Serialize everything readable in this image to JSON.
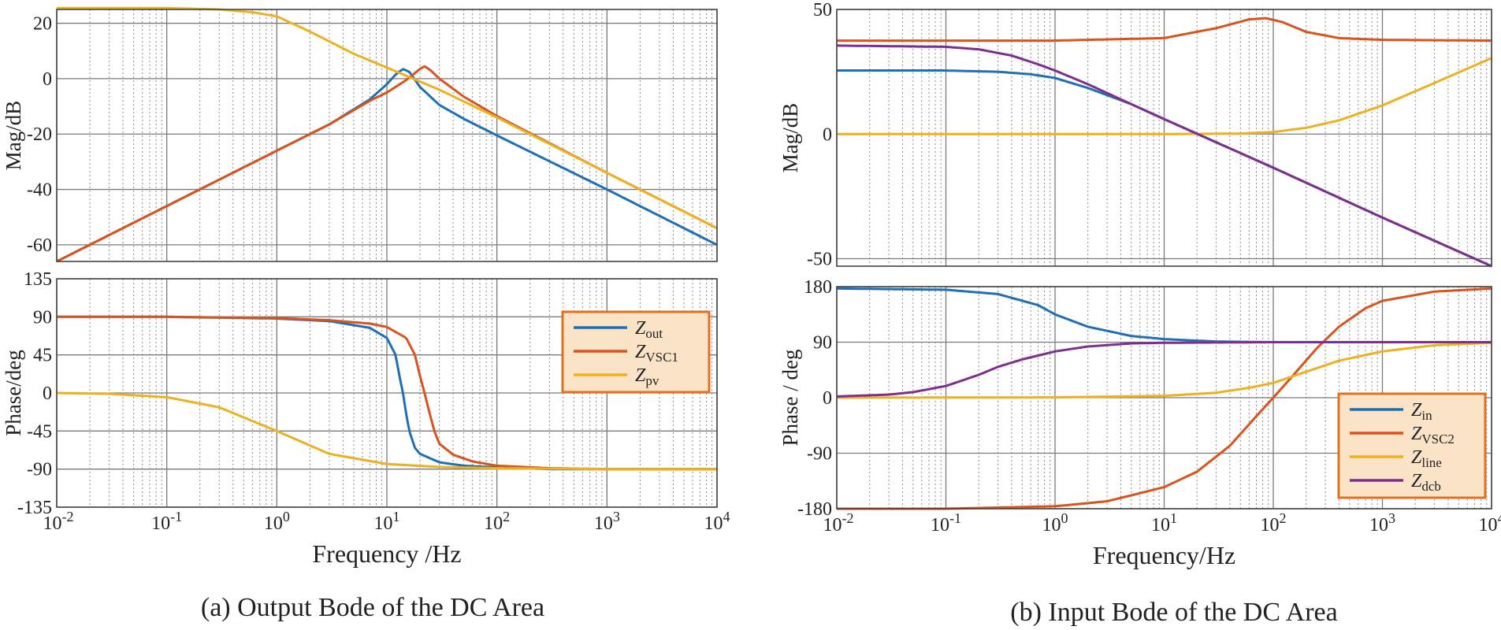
{
  "chart_data": [
    {
      "id": "a",
      "type": "line",
      "caption": "(a) Output Bode of the DC Area",
      "xlabel": "Frequency /Hz",
      "xscale": "log",
      "xlim": [
        0.01,
        10000
      ],
      "xticks": [
        {
          "mant": "10",
          "exp": "-2"
        },
        {
          "mant": "10",
          "exp": "-1"
        },
        {
          "mant": "10",
          "exp": "0"
        },
        {
          "mant": "10",
          "exp": "1"
        },
        {
          "mant": "10",
          "exp": "2"
        },
        {
          "mant": "10",
          "exp": "3"
        },
        {
          "mant": "10",
          "exp": "4"
        }
      ],
      "magnitude": {
        "ylabel": "Mag/dB",
        "ylim": [
          -66,
          25
        ],
        "yticks": [
          "20",
          "0",
          "-20",
          "-40",
          "-60"
        ],
        "yvalues": [
          20,
          0,
          -20,
          -40,
          -60
        ],
        "series": [
          {
            "key": "out",
            "name": "Z",
            "sub": "out",
            "color": "#1f6fb4",
            "x": [
              0.01,
              0.1,
              1,
              3,
              7,
              10,
              12,
              14,
              16,
              20,
              30,
              50,
              100,
              1000,
              10000
            ],
            "y": [
              -66,
              -46,
              -26,
              -16.5,
              -7.5,
              -2,
              1.5,
              3.5,
              2.5,
              -3,
              -9.5,
              -14.5,
              -20.5,
              -40,
              -60
            ]
          },
          {
            "key": "vsc1",
            "name": "Z",
            "sub": "VSC1",
            "color": "#d9531e",
            "x": [
              0.01,
              0.1,
              1,
              3,
              7,
              10,
              15,
              20,
              22,
              25,
              30,
              50,
              100,
              1000,
              10000
            ],
            "y": [
              -66,
              -46,
              -26,
              -16.5,
              -8,
              -5,
              -0.5,
              3.5,
              4.5,
              3,
              0,
              -6.5,
              -13.5,
              -34,
              -54
            ]
          },
          {
            "key": "pv",
            "name": "Z",
            "sub": "pv",
            "color": "#edb120",
            "x": [
              0.01,
              0.1,
              0.3,
              0.6,
              1,
              2,
              5,
              10,
              30,
              100,
              1000,
              10000
            ],
            "y": [
              25.5,
              25.5,
              25,
              24,
              22.5,
              17,
              9,
              4,
              -4,
              -14,
              -34,
              -54
            ]
          }
        ]
      },
      "phase": {
        "ylabel": "Phase/deg",
        "ylim": [
          -135,
          135
        ],
        "yticks": [
          "135",
          "90",
          "45",
          "0",
          "-45",
          "-90",
          "-135"
        ],
        "yvalues": [
          135,
          90,
          45,
          0,
          -45,
          -90,
          -135
        ],
        "series": [
          {
            "key": "out",
            "color": "#1f6fb4",
            "x": [
              0.01,
              0.1,
              1,
              3,
              7,
              10,
              12,
              13,
              14,
              15,
              16,
              18,
              20,
              30,
              50,
              100,
              300,
              1000,
              10000
            ],
            "y": [
              90,
              90,
              88,
              85,
              77,
              65,
              45,
              20,
              0,
              -25,
              -45,
              -65,
              -72,
              -82,
              -86,
              -88,
              -90,
              -90,
              -90
            ]
          },
          {
            "key": "vsc1",
            "color": "#d9531e",
            "x": [
              0.01,
              0.1,
              1,
              3,
              7,
              10,
              15,
              18,
              20,
              22,
              24,
              27,
              30,
              40,
              60,
              100,
              300,
              1000,
              10000
            ],
            "y": [
              90,
              90,
              88.5,
              86,
              82,
              78,
              65,
              45,
              20,
              0,
              -20,
              -45,
              -60,
              -73,
              -81,
              -86,
              -89,
              -90,
              -90
            ]
          },
          {
            "key": "pv",
            "color": "#edb120",
            "x": [
              0.01,
              0.03,
              0.1,
              0.3,
              1,
              3,
              10,
              30,
              100,
              1000,
              10000
            ],
            "y": [
              0,
              -1,
              -5,
              -17,
              -45,
              -72,
              -84,
              -87.5,
              -89,
              -90,
              -90
            ]
          }
        ],
        "legend": "upper-right"
      }
    },
    {
      "id": "b",
      "type": "line",
      "caption": "(b) Input Bode of the DC Area",
      "xlabel": "Frequency/Hz",
      "xscale": "log",
      "xlim": [
        0.01,
        10000
      ],
      "xticks": [
        {
          "mant": "10",
          "exp": "-2"
        },
        {
          "mant": "10",
          "exp": "-1"
        },
        {
          "mant": "10",
          "exp": "0"
        },
        {
          "mant": "10",
          "exp": "1"
        },
        {
          "mant": "10",
          "exp": "2"
        },
        {
          "mant": "10",
          "exp": "3"
        },
        {
          "mant": "10",
          "exp": "4"
        }
      ],
      "magnitude": {
        "ylabel": "Mag/dB",
        "ylim": [
          -53,
          50
        ],
        "yticks": [
          "50",
          "0",
          "-50"
        ],
        "yvalues": [
          50,
          0,
          -50
        ],
        "series": [
          {
            "key": "in",
            "name": "Z",
            "sub": "in",
            "color": "#1f6fb4",
            "x": [
              0.01,
              0.1,
              0.3,
              0.6,
              1,
              2,
              5,
              10,
              100,
              1000,
              10000
            ],
            "y": [
              25.5,
              25.5,
              25,
              24,
              22.5,
              18.5,
              12,
              6,
              -13.5,
              -33.5,
              -53
            ]
          },
          {
            "key": "vsc2",
            "name": "Z",
            "sub": "VSC2",
            "color": "#d9531e",
            "x": [
              0.01,
              1,
              10,
              30,
              60,
              85,
              120,
              200,
              400,
              1000,
              10000
            ],
            "y": [
              37.5,
              37.5,
              38.5,
              42.5,
              46,
              46.5,
              45,
              41,
              38.5,
              37.8,
              37.5
            ]
          },
          {
            "key": "line",
            "name": "Z",
            "sub": "line",
            "color": "#edb120",
            "x": [
              0.01,
              10,
              50,
              100,
              200,
              400,
              1000,
              3000,
              10000
            ],
            "y": [
              0,
              0,
              0.2,
              0.8,
              2.5,
              5.5,
              11.5,
              20.5,
              30.5
            ]
          },
          {
            "key": "dcb",
            "name": "Z",
            "sub": "dcb",
            "color": "#7e2f8e",
            "x": [
              0.01,
              0.1,
              0.2,
              0.4,
              0.7,
              1,
              2,
              5,
              10,
              100,
              1000,
              10000
            ],
            "y": [
              35.5,
              35,
              34,
              31.5,
              28,
              25.5,
              20,
              12,
              6,
              -13.5,
              -33.5,
              -53
            ]
          }
        ]
      },
      "phase": {
        "ylabel": "Phase / deg",
        "ylim": [
          -180,
          180
        ],
        "yticks": [
          "180",
          "90",
          "0",
          "-90",
          "-180"
        ],
        "yvalues": [
          180,
          90,
          0,
          -90,
          -180
        ],
        "series": [
          {
            "key": "in",
            "color": "#1f6fb4",
            "x": [
              0.01,
              0.1,
              0.3,
              0.7,
              1,
              2,
              5,
              10,
              30,
              100,
              1000,
              10000
            ],
            "y": [
              177,
              175,
              168,
              150,
              135,
              115,
              100,
              95,
              91,
              90,
              90,
              90
            ]
          },
          {
            "key": "vsc2",
            "color": "#d9531e",
            "x": [
              0.01,
              0.1,
              1,
              3,
              10,
              20,
              40,
              70,
              100,
              150,
              250,
              400,
              700,
              1000,
              3000,
              10000
            ],
            "y": [
              -180,
              -180,
              -176,
              -168,
              -145,
              -120,
              -78,
              -30,
              0,
              35,
              80,
              115,
              145,
              157,
              172,
              177
            ]
          },
          {
            "key": "line",
            "color": "#edb120",
            "x": [
              0.01,
              1,
              10,
              30,
              60,
              100,
              200,
              400,
              1000,
              3000,
              10000
            ],
            "y": [
              0,
              0.5,
              3,
              8,
              16,
              24,
              42,
              60,
              75,
              85,
              89
            ]
          },
          {
            "key": "dcb",
            "color": "#7e2f8e",
            "x": [
              0.01,
              0.03,
              0.05,
              0.1,
              0.2,
              0.3,
              0.5,
              1,
              2,
              5,
              10,
              100,
              10000
            ],
            "y": [
              2,
              5,
              9,
              19,
              37,
              50,
              62,
              75,
              83,
              88,
              89,
              90,
              90
            ]
          }
        ],
        "legend": "lower-right"
      }
    }
  ]
}
